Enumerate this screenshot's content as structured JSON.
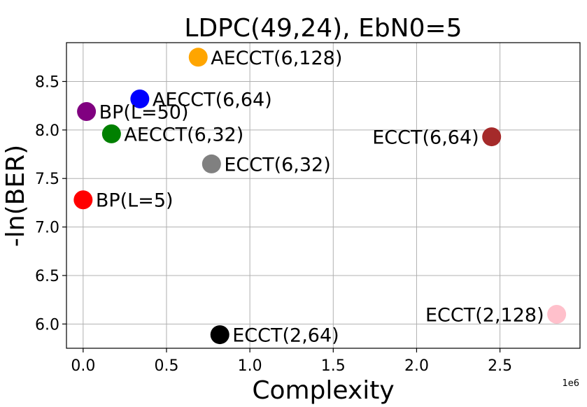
{
  "chart_data": {
    "type": "scatter",
    "title": "LDPC(49,24), EbN0=5",
    "xlabel": "Complexity",
    "ylabel": "-ln(BER)",
    "x_offset_label": "1e6",
    "xlim": [
      -0.1,
      2.98
    ],
    "ylim": [
      5.75,
      8.9
    ],
    "xticks": [
      0.0,
      0.5,
      1.0,
      1.5,
      2.0,
      2.5
    ],
    "xtick_labels": [
      "0.0",
      "0.5",
      "1.0",
      "1.5",
      "2.0",
      "2.5"
    ],
    "yticks": [
      6.0,
      6.5,
      7.0,
      7.5,
      8.0,
      8.5
    ],
    "ytick_labels": [
      "6.0",
      "6.5",
      "7.0",
      "7.5",
      "8.0",
      "8.5"
    ],
    "grid": true,
    "points": [
      {
        "label": "BP(L=5)",
        "x": 0.0,
        "y": 7.28,
        "color": "#ff0000",
        "label_side": "right"
      },
      {
        "label": "BP(L=50)",
        "x": 0.02,
        "y": 8.19,
        "color": "#800080",
        "label_side": "right"
      },
      {
        "label": "AECCT(6,32)",
        "x": 0.17,
        "y": 7.96,
        "color": "#008000",
        "label_side": "right"
      },
      {
        "label": "AECCT(6,64)",
        "x": 0.34,
        "y": 8.32,
        "color": "#0000ff",
        "label_side": "right"
      },
      {
        "label": "AECCT(6,128)",
        "x": 0.69,
        "y": 8.75,
        "color": "#ffa500",
        "label_side": "right"
      },
      {
        "label": "ECCT(6,32)",
        "x": 0.77,
        "y": 7.65,
        "color": "#808080",
        "label_side": "right"
      },
      {
        "label": "ECCT(2,64)",
        "x": 0.82,
        "y": 5.89,
        "color": "#000000",
        "label_side": "right"
      },
      {
        "label": "ECCT(6,64)",
        "x": 2.45,
        "y": 7.93,
        "color": "#a52a2a",
        "label_side": "left"
      },
      {
        "label": "ECCT(2,128)",
        "x": 2.84,
        "y": 6.1,
        "color": "#ffc0cb",
        "label_side": "left"
      }
    ]
  }
}
